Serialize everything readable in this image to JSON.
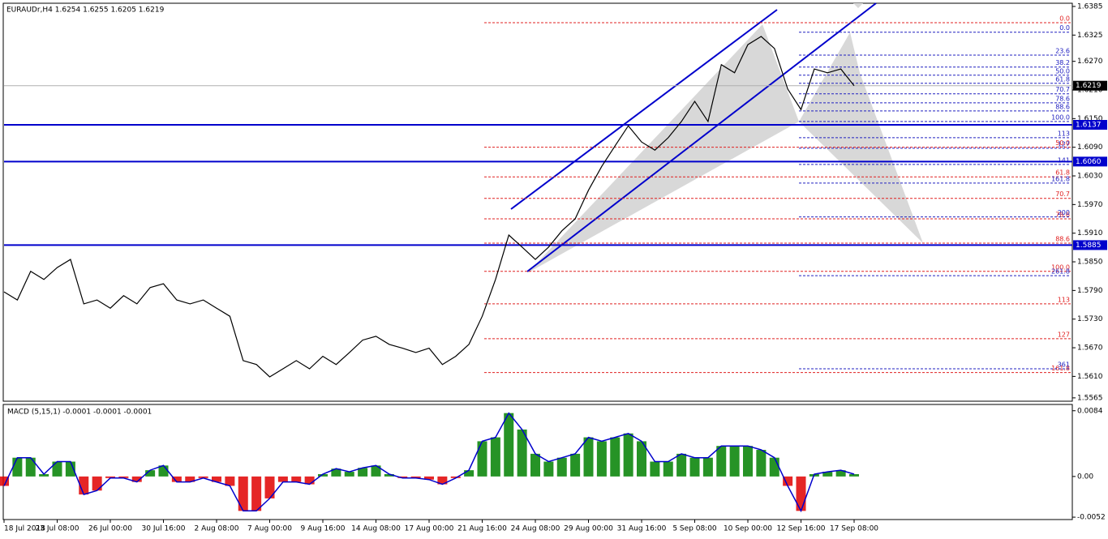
{
  "chart_data": [
    {
      "type": "line",
      "title": "EURAUDr,H4  1.6254 1.6255 1.6205 1.6219",
      "color": "#000000",
      "values": [
        1.5787,
        1.577,
        1.583,
        1.5813,
        1.5838,
        1.5855,
        1.5762,
        1.577,
        1.5753,
        1.5779,
        1.5762,
        1.5796,
        1.5804,
        1.577,
        1.5762,
        1.577,
        1.5753,
        1.5736,
        1.5643,
        1.5635,
        1.5609,
        1.5626,
        1.5643,
        1.5626,
        1.5652,
        1.5635,
        1.566,
        1.5686,
        1.5694,
        1.5677,
        1.5669,
        1.566,
        1.5669,
        1.5635,
        1.5652,
        1.5677,
        1.5736,
        1.5813,
        1.5906,
        1.5881,
        1.5855,
        1.5881,
        1.5915,
        1.594,
        1.6,
        1.605,
        1.6093,
        1.6135,
        1.6101,
        1.6084,
        1.611,
        1.6144,
        1.6186,
        1.6144,
        1.6263,
        1.6246,
        1.6305,
        1.6322,
        1.6297,
        1.6212,
        1.6169,
        1.6254,
        1.6246,
        1.6254,
        1.6219
      ],
      "ylim": [
        1.5558,
        1.639
      ],
      "yticks": [
        1.6385,
        1.6325,
        {
          "value": 1.627,
          "label": "1.6270"
        },
        {
          "value": 1.621,
          "label": "1.6210"
        },
        {
          "value": 1.615,
          "label": "1.6150"
        },
        {
          "value": 1.609,
          "label": "1.6090"
        },
        {
          "value": 1.603,
          "label": "1.6030"
        },
        {
          "value": 1.597,
          "label": "1.5970"
        },
        {
          "value": 1.591,
          "label": "1.5910"
        },
        {
          "value": 1.585,
          "label": "1.5850"
        },
        {
          "value": 1.579,
          "label": "1.5790"
        },
        {
          "value": 1.573,
          "label": "1.5730"
        },
        {
          "value": 1.567,
          "label": "1.5670"
        },
        {
          "value": 1.561,
          "label": "1.5610"
        },
        1.5565
      ],
      "hlines": [
        1.6137,
        {
          "value": 1.606,
          "label": "1.6060"
        },
        1.5885
      ],
      "hline_color": "#0000cc",
      "last_price": 1.6219,
      "fib_red_color": "#e02020",
      "fib_red": [
        {
          "label": "0.0",
          "price": 1.6351
        },
        {
          "label": "50.0",
          "price": 1.609
        },
        {
          "label": "61.8",
          "price": 1.6028
        },
        {
          "label": "70.7",
          "price": 1.5983
        },
        {
          "label": "78.6",
          "price": 1.594
        },
        {
          "label": "88.6",
          "price": 1.5889
        },
        {
          "label": "100.0",
          "price": 1.583
        },
        {
          "label": "113",
          "price": 1.5762
        },
        {
          "label": "127",
          "price": 1.5689
        },
        {
          "label": "161.8",
          "price": 1.5618
        }
      ],
      "fib_blue_color": "#2020c0",
      "fib_blue": [
        {
          "label": "0.0",
          "price": 1.6331
        },
        {
          "label": "23.6",
          "price": 1.6283
        },
        {
          "label": "38.2",
          "price": 1.6258
        },
        {
          "label": "50.0",
          "price": 1.6241
        },
        {
          "label": "61.8",
          "price": 1.6224
        },
        {
          "label": "70.7",
          "price": 1.6202
        },
        {
          "label": "78.6",
          "price": 1.6183
        },
        {
          "label": "88.6",
          "price": 1.6166
        },
        {
          "label": "100.0",
          "price": 1.6144
        },
        {
          "label": "113",
          "price": 1.611
        },
        {
          "label": "127",
          "price": 1.6088
        },
        {
          "label": "141",
          "price": 1.6054
        },
        {
          "label": "161.8",
          "price": 1.6015
        },
        {
          "label": "200",
          "price": 1.5944
        },
        {
          "label": "261.8",
          "price": 1.5821
        },
        {
          "label": "361",
          "price": 1.5626
        }
      ]
    },
    {
      "type": "bar",
      "title": "MACD (5,15,1) -0.0001 -0.0001 -0.0001",
      "up_color": "#008000",
      "down_color": "#e00000",
      "line_color": "#0000cc",
      "categories": [
        "18 Jul 2018",
        null,
        null,
        null,
        "23 Jul 08:00",
        null,
        null,
        null,
        "26 Jul 00:00",
        null,
        null,
        null,
        "30 Jul 16:00",
        null,
        null,
        null,
        "2 Aug 08:00",
        null,
        null,
        null,
        "7 Aug 00:00",
        null,
        null,
        null,
        "9 Aug 16:00",
        null,
        null,
        null,
        "14 Aug 08:00",
        null,
        null,
        null,
        "17 Aug 00:00",
        null,
        null,
        null,
        "21 Aug 16:00",
        null,
        null,
        null,
        "24 Aug 08:00",
        null,
        null,
        null,
        "29 Aug 00:00",
        null,
        null,
        null,
        "31 Aug 16:00",
        null,
        null,
        null,
        "5 Sep 08:00",
        null,
        null,
        null,
        "10 Sep 00:00",
        null,
        null,
        null,
        "12 Sep 16:00",
        null,
        null,
        null,
        "17 Sep 08:00"
      ],
      "values": [
        -0.0012,
        0.0024,
        0.0024,
        0.0003,
        0.0019,
        0.0019,
        -0.0023,
        -0.0018,
        -0.0002,
        -0.0002,
        -0.0007,
        0.0008,
        0.0014,
        -0.0007,
        -0.0007,
        -0.0002,
        -0.0007,
        -0.0012,
        -0.0044,
        -0.0044,
        -0.0028,
        -0.0007,
        -0.0007,
        -0.001,
        0.0003,
        0.001,
        0.0006,
        0.0011,
        0.0014,
        0.0003,
        -0.0002,
        -0.0002,
        -0.0004,
        -0.001,
        -0.0002,
        0.0008,
        0.0045,
        0.005,
        0.0081,
        0.006,
        0.0029,
        0.0019,
        0.0024,
        0.0029,
        0.005,
        0.0045,
        0.005,
        0.0055,
        0.0045,
        0.0019,
        0.0019,
        0.0029,
        0.0024,
        0.0024,
        0.0039,
        0.0039,
        0.0039,
        0.0034,
        0.0024,
        -0.0012,
        -0.0044,
        0.0003,
        0.0006,
        0.0008,
        0.0003
      ],
      "ylim": [
        -0.0054,
        0.0091
      ],
      "yticks": [
        0.0084,
        {
          "value": 0,
          "label": "0.00"
        },
        -0.0052
      ]
    }
  ]
}
